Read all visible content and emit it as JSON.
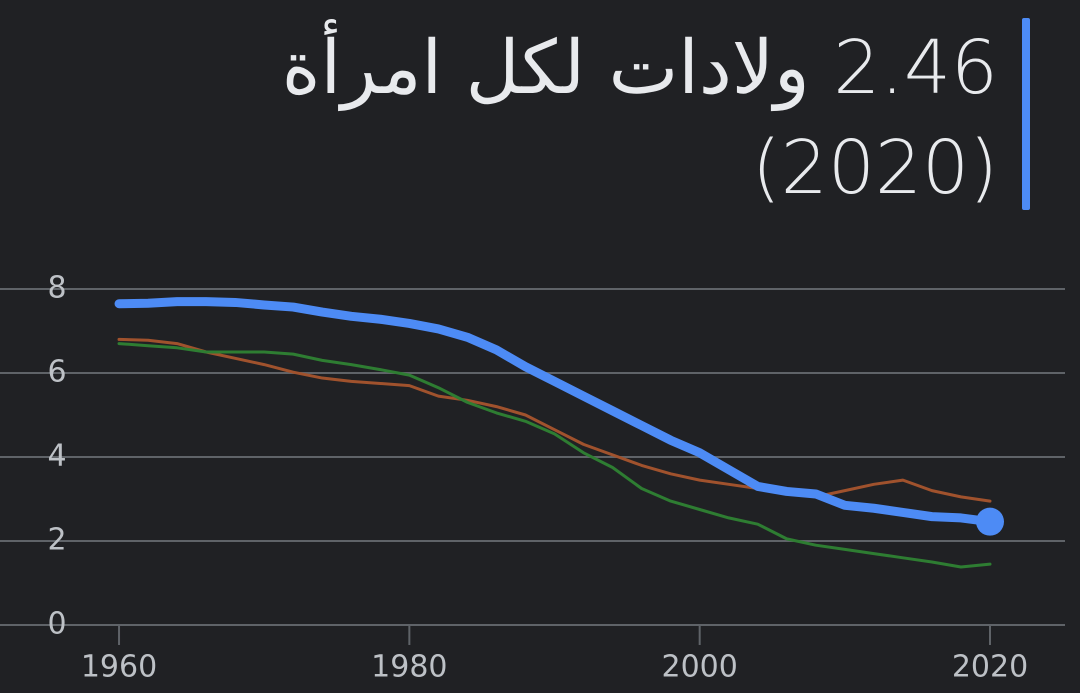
{
  "chart_data": {
    "type": "line",
    "title": "2.46 ولادات لكل امرأة",
    "subtitle": "(2020)",
    "x": [
      1960,
      1962,
      1964,
      1966,
      1968,
      1970,
      1972,
      1974,
      1976,
      1978,
      1980,
      1982,
      1984,
      1986,
      1988,
      1990,
      1992,
      1994,
      1996,
      1998,
      2000,
      2002,
      2004,
      2006,
      2008,
      2010,
      2012,
      2014,
      2016,
      2018,
      2020
    ],
    "series": [
      {
        "color": "#a0522d",
        "values": [
          6.8,
          6.78,
          6.7,
          6.5,
          6.35,
          6.2,
          6.02,
          5.88,
          5.8,
          5.75,
          5.7,
          5.45,
          5.35,
          5.2,
          5.0,
          4.65,
          4.3,
          4.05,
          3.8,
          3.6,
          3.45,
          3.35,
          3.25,
          3.15,
          3.05,
          3.2,
          3.35,
          3.45,
          3.2,
          3.05,
          2.95
        ]
      },
      {
        "color": "#2e7d32",
        "values": [
          6.7,
          6.65,
          6.6,
          6.5,
          6.5,
          6.5,
          6.45,
          6.3,
          6.2,
          6.08,
          5.95,
          5.65,
          5.3,
          5.05,
          4.85,
          4.55,
          4.1,
          3.75,
          3.25,
          2.95,
          2.75,
          2.55,
          2.4,
          2.05,
          1.9,
          1.8,
          1.7,
          1.6,
          1.5,
          1.38,
          1.45
        ]
      },
      {
        "color": "#4d8bf5",
        "values": [
          7.65,
          7.66,
          7.7,
          7.7,
          7.68,
          7.62,
          7.57,
          7.45,
          7.35,
          7.28,
          7.18,
          7.05,
          6.85,
          6.55,
          6.15,
          5.8,
          5.45,
          5.1,
          4.75,
          4.4,
          4.1,
          3.7,
          3.3,
          3.18,
          3.12,
          2.85,
          2.78,
          2.68,
          2.58,
          2.55,
          2.46
        ]
      }
    ],
    "xlim": [
      1951.8,
      2026.2
    ],
    "xticks": [
      1960,
      1980,
      2000,
      2020
    ],
    "ylim": [
      0,
      8
    ],
    "yticks": [
      0,
      2,
      4,
      6,
      8
    ],
    "grid": true
  }
}
